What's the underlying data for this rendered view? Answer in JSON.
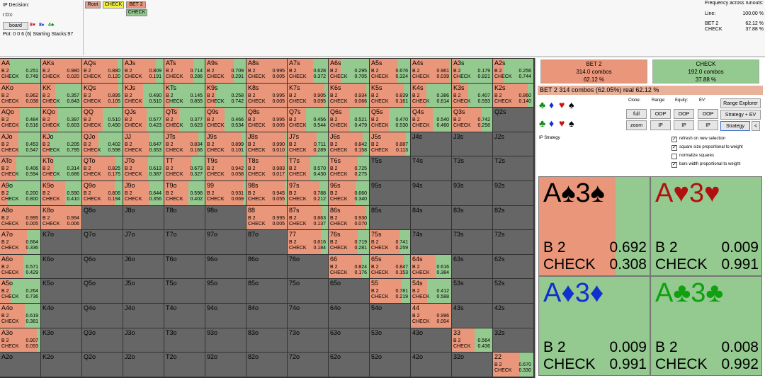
{
  "header": {
    "decision_label": "IP Decision:",
    "node": "r:0:c",
    "board_button": "board",
    "board_cards": [
      {
        "text": "8♥",
        "color": "#d01010"
      },
      {
        "text": "8♦",
        "color": "#1030d0"
      },
      {
        "text": "4♣",
        "color": "#109010"
      }
    ],
    "pot": "Pot: 0 0 6 (6) Starting Stacks:97"
  },
  "tree": {
    "nodes": [
      {
        "text": "Root",
        "color": "#e0a090"
      },
      {
        "text": "CHECK",
        "color": "#f4f040"
      },
      {
        "text": "BET 2",
        "color": "#e9967a"
      },
      {
        "text": "CHECK",
        "color": "#94c98f"
      }
    ]
  },
  "frequency": {
    "title": "Frequency across runouts:",
    "rows": [
      [
        "Line:",
        "100.00 %"
      ],
      [
        "BET 2",
        "62.12 %"
      ],
      [
        "CHECK",
        "37.88 %"
      ]
    ]
  },
  "grid": {
    "bet_label": "B 2",
    "check_label": "CHECK",
    "rows": [
      [
        [
          "AA",
          "0.251",
          "0.749"
        ],
        [
          "AKs",
          "0.980",
          "0.020"
        ],
        [
          "AQs",
          "0.880",
          "0.120"
        ],
        [
          "AJs",
          "0.809",
          "0.191"
        ],
        [
          "ATs",
          "0.714",
          "0.286"
        ],
        [
          "A9s",
          "0.709",
          "0.291"
        ],
        [
          "A8s",
          "0.995",
          "0.005"
        ],
        [
          "A7s",
          "0.628",
          "0.372"
        ],
        [
          "A6s",
          "0.295",
          "0.705"
        ],
        [
          "A5s",
          "0.676",
          "0.324"
        ],
        [
          "A4s",
          "0.961",
          "0.039"
        ],
        [
          "A3s",
          "0.179",
          "0.821"
        ],
        [
          "A2s",
          "0.256",
          "0.744"
        ]
      ],
      [
        [
          "AKo",
          "0.962",
          "0.038"
        ],
        [
          "KK",
          "0.357",
          "0.643"
        ],
        [
          "KQs",
          "0.895",
          "0.105"
        ],
        [
          "KJs",
          "0.490",
          "0.510"
        ],
        [
          "KTs",
          "0.145",
          "0.855"
        ],
        [
          "K9s",
          "0.258",
          "0.742"
        ],
        [
          "K8s",
          "0.995",
          "0.005"
        ],
        [
          "K7s",
          "0.905",
          "0.095"
        ],
        [
          "K6s",
          "0.934",
          "0.066"
        ],
        [
          "K5s",
          "0.839",
          "0.161"
        ],
        [
          "K4s",
          "0.386",
          "0.614"
        ],
        [
          "K3s",
          "0.407",
          "0.593"
        ],
        [
          "K2s",
          "0.860",
          "0.140"
        ]
      ],
      [
        [
          "AQo",
          "0.484",
          "0.516"
        ],
        [
          "KQo",
          "0.397",
          "0.603"
        ],
        [
          "QQ",
          "0.510",
          "0.490"
        ],
        [
          "QJs",
          "0.577",
          "0.423"
        ],
        [
          "QTs",
          "0.377",
          "0.623"
        ],
        [
          "Q9s",
          "0.466",
          "0.534"
        ],
        [
          "Q8s",
          "0.995",
          "0.005"
        ],
        [
          "Q7s",
          "0.456",
          "0.544"
        ],
        [
          "Q6s",
          "0.521",
          "0.479"
        ],
        [
          "Q5s",
          "0.470",
          "0.530"
        ],
        [
          "Q4s",
          "0.540",
          "0.460"
        ],
        [
          "Q3s",
          "0.742",
          "0.258"
        ],
        [
          "Q2s"
        ]
      ],
      [
        [
          "AJo",
          "0.453",
          "0.547"
        ],
        [
          "KJo",
          "0.205",
          "0.795"
        ],
        [
          "QJo",
          "0.402",
          "0.598"
        ],
        [
          "JJ",
          "0.647",
          "0.353"
        ],
        [
          "JTs",
          "0.834",
          "0.166"
        ],
        [
          "J9s",
          "0.899",
          "0.101"
        ],
        [
          "J8s",
          "0.990",
          "0.010"
        ],
        [
          "J7s",
          "0.711",
          "0.289"
        ],
        [
          "J6s",
          "0.842",
          "0.158"
        ],
        [
          "J5s",
          "0.887",
          "0.113"
        ],
        [
          "J4s"
        ],
        [
          "J3s"
        ],
        [
          "J2s"
        ]
      ],
      [
        [
          "ATo",
          "0.406",
          "0.594"
        ],
        [
          "KTo",
          "0.314",
          "0.686"
        ],
        [
          "QTo",
          "0.825",
          "0.175"
        ],
        [
          "JTo",
          "0.613",
          "0.387"
        ],
        [
          "TT",
          "0.673",
          "0.327"
        ],
        [
          "T9s",
          "0.942",
          "0.058"
        ],
        [
          "T8s",
          "0.983",
          "0.017"
        ],
        [
          "T7s",
          "0.570",
          "0.430"
        ],
        [
          "T6s",
          "0.725",
          "0.275"
        ],
        [
          "T5s"
        ],
        [
          "T4s"
        ],
        [
          "T3s"
        ],
        [
          "T2s"
        ]
      ],
      [
        [
          "A9o",
          "0.200",
          "0.800"
        ],
        [
          "K9o",
          "0.590",
          "0.410"
        ],
        [
          "Q9o",
          "0.806",
          "0.194"
        ],
        [
          "J9o",
          "0.644",
          "0.356"
        ],
        [
          "T9o",
          "0.598",
          "0.402"
        ],
        [
          "99",
          "0.931",
          "0.069"
        ],
        [
          "98s",
          "0.945",
          "0.055"
        ],
        [
          "97s",
          "0.788",
          "0.212"
        ],
        [
          "96s",
          "0.660",
          "0.340"
        ],
        [
          "95s"
        ],
        [
          "94s"
        ],
        [
          "93s"
        ],
        [
          "92s"
        ]
      ],
      [
        [
          "A8o",
          "0.995",
          "0.005"
        ],
        [
          "K8o",
          "0.994",
          "0.006"
        ],
        [
          "Q8o"
        ],
        [
          "J8o"
        ],
        [
          "T8o"
        ],
        [
          "98o"
        ],
        [
          "88",
          "0.995",
          "0.005"
        ],
        [
          "87s",
          "0.863",
          "0.137"
        ],
        [
          "86s",
          "0.930",
          "0.070"
        ],
        [
          "85s"
        ],
        [
          "84s"
        ],
        [
          "83s"
        ],
        [
          "82s"
        ]
      ],
      [
        [
          "A7o",
          "0.664",
          "0.336"
        ],
        [
          "K7o"
        ],
        [
          "Q7o"
        ],
        [
          "J7o"
        ],
        [
          "T7o"
        ],
        [
          "97o"
        ],
        [
          "87o"
        ],
        [
          "77",
          "0.816",
          "0.184"
        ],
        [
          "76s",
          "0.719",
          "0.281"
        ],
        [
          "75s",
          "0.741",
          "0.259"
        ],
        [
          "74s"
        ],
        [
          "73s"
        ],
        [
          "72s"
        ]
      ],
      [
        [
          "A6o",
          "0.571",
          "0.429"
        ],
        [
          "K6o"
        ],
        [
          "Q6o"
        ],
        [
          "J6o"
        ],
        [
          "T6o"
        ],
        [
          "96o"
        ],
        [
          "86o"
        ],
        [
          "76o"
        ],
        [
          "66",
          "0.824",
          "0.176"
        ],
        [
          "65s",
          "0.847",
          "0.153"
        ],
        [
          "64s",
          "0.616",
          "0.384"
        ],
        [
          "63s"
        ],
        [
          "62s"
        ]
      ],
      [
        [
          "A5o",
          "0.264",
          "0.736"
        ],
        [
          "K5o"
        ],
        [
          "Q5o"
        ],
        [
          "J5o"
        ],
        [
          "T5o"
        ],
        [
          "95o"
        ],
        [
          "85o"
        ],
        [
          "75o"
        ],
        [
          "65o"
        ],
        [
          "55",
          "0.781",
          "0.219"
        ],
        [
          "54s",
          "0.412",
          "0.588"
        ],
        [
          "53s"
        ],
        [
          "52s"
        ]
      ],
      [
        [
          "A4o",
          "0.619",
          "0.381"
        ],
        [
          "K4o"
        ],
        [
          "Q4o"
        ],
        [
          "J4o"
        ],
        [
          "T4o"
        ],
        [
          "94o"
        ],
        [
          "84o"
        ],
        [
          "74o"
        ],
        [
          "64o"
        ],
        [
          "54o"
        ],
        [
          "44",
          "0.996",
          "0.004"
        ],
        [
          "43s"
        ],
        [
          "42s"
        ]
      ],
      [
        [
          "A3o",
          "0.907",
          "0.093"
        ],
        [
          "K3o"
        ],
        [
          "Q3o"
        ],
        [
          "J3o"
        ],
        [
          "T3o"
        ],
        [
          "93o"
        ],
        [
          "83o"
        ],
        [
          "73o"
        ],
        [
          "63o"
        ],
        [
          "53o"
        ],
        [
          "43o"
        ],
        [
          "33",
          "0.564",
          "0.436"
        ],
        [
          "32s"
        ]
      ],
      [
        [
          "A2o"
        ],
        [
          "K2o"
        ],
        [
          "Q2o"
        ],
        [
          "J2o"
        ],
        [
          "T2o"
        ],
        [
          "92o"
        ],
        [
          "82o"
        ],
        [
          "72o"
        ],
        [
          "62o"
        ],
        [
          "52o"
        ],
        [
          "42o"
        ],
        [
          "32o"
        ],
        [
          "22",
          "0.670",
          "0.330"
        ]
      ]
    ]
  },
  "summary": [
    {
      "action": "BET 2",
      "combos": "314.0 combos",
      "pct": "62.12 %"
    },
    {
      "action": "CHECK",
      "combos": "192.0 combos",
      "pct": "37.88 %"
    }
  ],
  "status": "BET 2  314 combos (62.05%) real 62.12 %",
  "suits": [
    {
      "text": "♣",
      "color": "#109010"
    },
    {
      "text": "♦",
      "color": "#1030d0"
    },
    {
      "text": "♥",
      "color": "#d01010"
    },
    {
      "text": "♠",
      "color": "#000000"
    }
  ],
  "controls": {
    "labels": [
      "Clone:",
      "Range:",
      "Equity:",
      "EV:"
    ],
    "row1": [
      "full",
      "OOP",
      "OOP",
      "OOP",
      "Range Explorer"
    ],
    "row2": [
      "zoom",
      "IP",
      "IP",
      "IP",
      "Strategy + EV",
      "Strategy",
      "<"
    ]
  },
  "strategy_label": "IP Strategy",
  "options": [
    {
      "label": "refresh on new selection",
      "checked": true
    },
    {
      "label": "square size proportional to weight",
      "checked": true
    },
    {
      "label": "normalize squares",
      "checked": false
    },
    {
      "label": "bars width proportional to weight",
      "checked": true
    }
  ],
  "combos": {
    "bet_label": "B 2",
    "check_label": "CHECK",
    "items": [
      {
        "hand": "A♠3♠",
        "color": "#000000",
        "bet": "0.692",
        "check": "0.308"
      },
      {
        "hand": "A♥3♥",
        "color": "#b01010",
        "bet": "0.009",
        "check": "0.991"
      },
      {
        "hand": "A♦3♦",
        "color": "#1030d0",
        "bet": "0.009",
        "check": "0.991"
      },
      {
        "hand": "A♣3♣",
        "color": "#10a010",
        "bet": "0.008",
        "check": "0.992"
      }
    ]
  }
}
